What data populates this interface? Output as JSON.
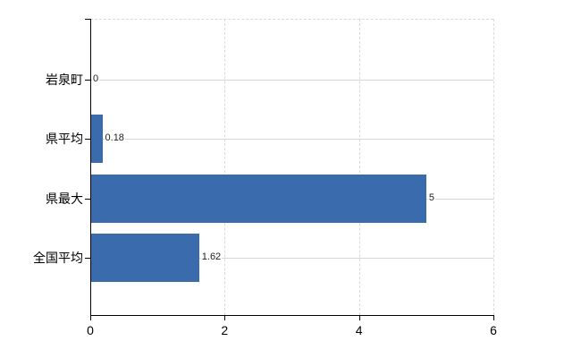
{
  "chart_data": {
    "type": "bar",
    "orientation": "horizontal",
    "title": "",
    "xlabel": "",
    "ylabel": "",
    "categories": [
      "岩泉町",
      "県平均",
      "県最大",
      "全国平均"
    ],
    "values": [
      0,
      0.18,
      5,
      1.62
    ],
    "value_labels": [
      "0",
      "0.18",
      "5",
      "1.62"
    ],
    "xlim": [
      0,
      6
    ],
    "x_ticks": [
      0,
      2,
      4,
      6
    ],
    "x_tick_labels": [
      "0",
      "2",
      "4",
      "6"
    ],
    "x_gridlines": [
      2,
      4,
      6
    ],
    "grid": true,
    "legend": false,
    "bar_color": "#3a6cad",
    "h_gridline_color": "#d4d8d4",
    "v_gridline_color": "#d9d9d9",
    "axis_color": "#000000"
  }
}
